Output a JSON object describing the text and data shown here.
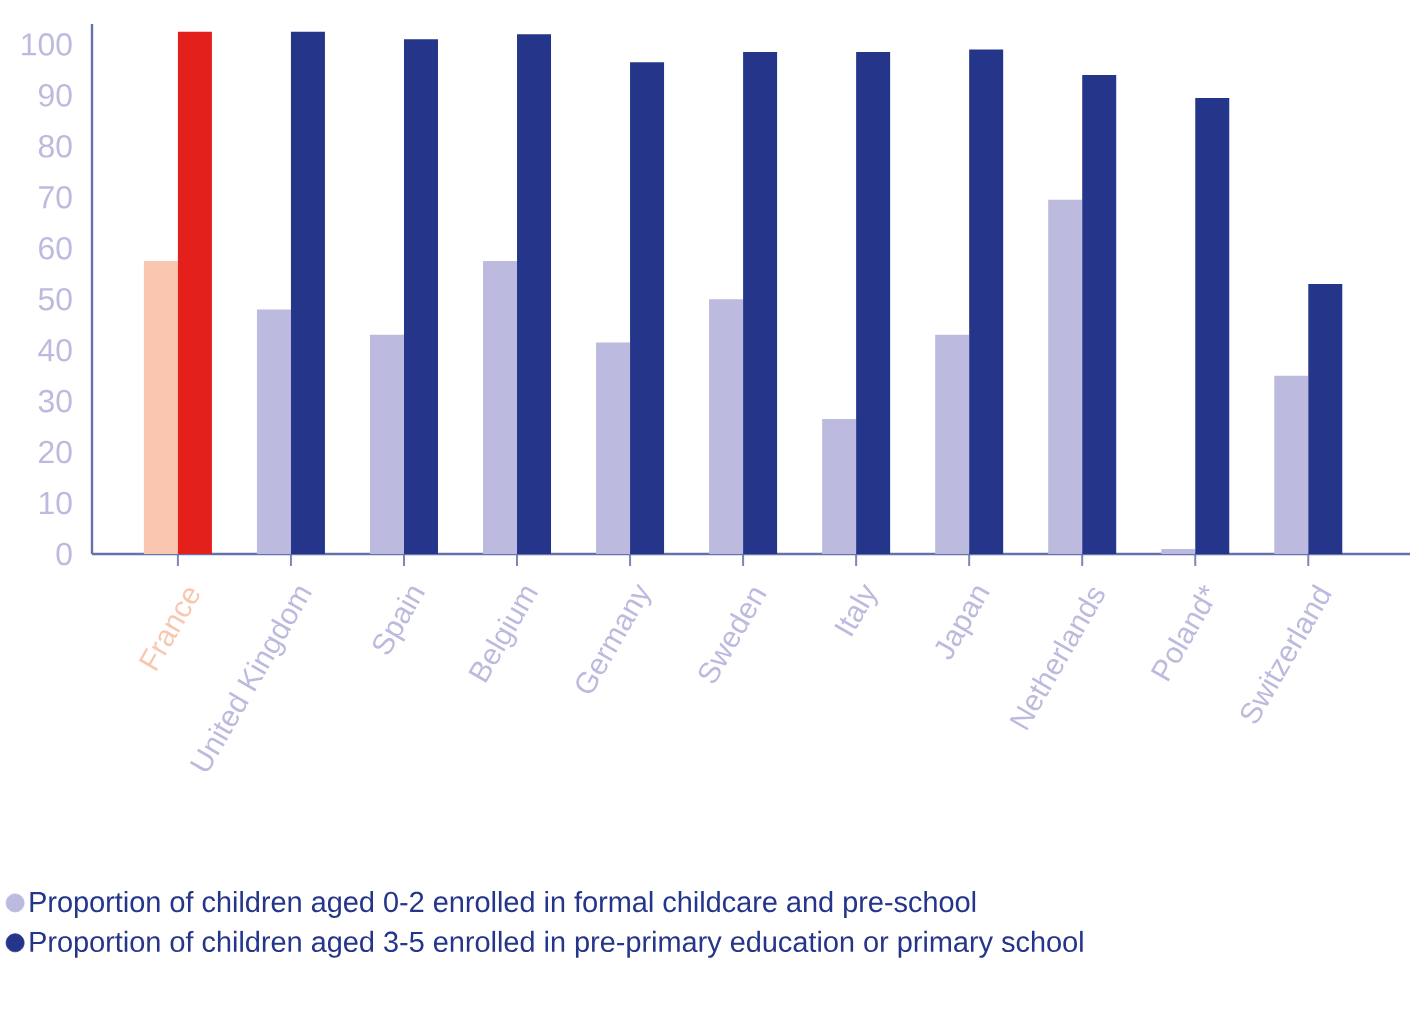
{
  "chart_data": {
    "type": "bar",
    "categories": [
      "France",
      "United Kingdom",
      "Spain",
      "Belgium",
      "Germany",
      "Sweden",
      "Italy",
      "Japan",
      "Netherlands",
      "Poland*",
      "Switzerland"
    ],
    "series": [
      {
        "name": "Proportion of children aged 0-2 enrolled in formal childcare and pre-school",
        "color": "#bcbade",
        "colors": [
          "#f9c6b0",
          "#bcbade",
          "#bcbade",
          "#bcbade",
          "#bcbade",
          "#bcbade",
          "#bcbade",
          "#bcbade",
          "#bcbade",
          "#bcbade",
          "#bcbade"
        ],
        "values": [
          57.5,
          48,
          43,
          57.5,
          41.5,
          50,
          26.5,
          43,
          69.5,
          1,
          35
        ]
      },
      {
        "name": "Proportion of children aged 3-5 enrolled in pre-primary education or primary school",
        "color": "#24358a",
        "colors": [
          "#e3201b",
          "#24358a",
          "#24358a",
          "#24358a",
          "#24358a",
          "#24358a",
          "#24358a",
          "#24358a",
          "#24358a",
          "#24358a",
          "#24358a"
        ],
        "values": [
          102.5,
          102.5,
          101,
          102,
          96.5,
          98.5,
          98.5,
          99,
          94,
          89.5,
          53
        ]
      }
    ],
    "ylim": [
      0,
      104
    ],
    "yticks": [
      0,
      10,
      20,
      30,
      40,
      50,
      60,
      70,
      80,
      90,
      100
    ],
    "grid": false,
    "legend": "bottom left"
  }
}
